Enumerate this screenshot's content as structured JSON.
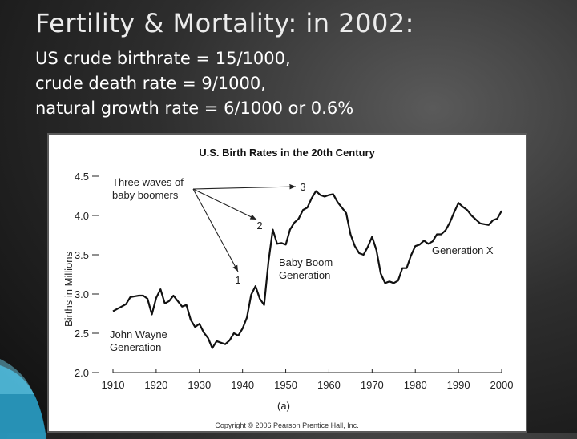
{
  "slide": {
    "title": "Fertility & Mortality: in 2002:",
    "lines": [
      "US crude birthrate = 15/1000,",
      "crude death rate = 9/1000,",
      "natural growth rate = 6/1000 or 0.6%"
    ],
    "accent_color": "#2aa0c8"
  },
  "chart_data": {
    "type": "line",
    "title": "U.S. Birth Rates in the 20th Century",
    "xlabel": "",
    "ylabel": "Births in Millions",
    "xlim": [
      1910,
      2000
    ],
    "ylim": [
      2.0,
      4.5
    ],
    "x_ticks": [
      1910,
      1920,
      1930,
      1940,
      1950,
      1960,
      1970,
      1980,
      1990,
      2000
    ],
    "y_ticks": [
      2.0,
      2.5,
      3.0,
      3.5,
      4.0,
      4.5
    ],
    "y_tick_labels": [
      "2.0",
      "2.5",
      "3.0",
      "3.5",
      "4.0",
      "4.5"
    ],
    "grid": false,
    "line_color": "#111111",
    "series": [
      {
        "x": [
          1910,
          1911,
          1912,
          1913,
          1914,
          1915,
          1916,
          1917,
          1918,
          1919,
          1920,
          1921,
          1922,
          1923,
          1924,
          1925,
          1926,
          1927,
          1928,
          1929,
          1930,
          1931,
          1932,
          1933,
          1934,
          1935,
          1936,
          1937,
          1938,
          1939,
          1940,
          1941,
          1942,
          1943,
          1944,
          1945,
          1946,
          1947,
          1948,
          1949,
          1950,
          1951,
          1952,
          1953,
          1954,
          1955,
          1956,
          1957,
          1958,
          1959,
          1960,
          1961,
          1962,
          1963,
          1964,
          1965,
          1966,
          1967,
          1968,
          1969,
          1970,
          1971,
          1972,
          1973,
          1974,
          1975,
          1976,
          1977,
          1978,
          1979,
          1980,
          1981,
          1982,
          1983,
          1984,
          1985,
          1986,
          1987,
          1988,
          1989,
          1990,
          1991,
          1992,
          1993,
          1994,
          1995,
          1996,
          1997,
          1998,
          1999,
          2000
        ],
        "values": [
          2.78,
          2.81,
          2.84,
          2.87,
          2.96,
          2.97,
          2.98,
          2.98,
          2.94,
          2.74,
          2.95,
          3.06,
          2.88,
          2.91,
          2.98,
          2.91,
          2.84,
          2.86,
          2.67,
          2.58,
          2.62,
          2.51,
          2.44,
          2.31,
          2.4,
          2.38,
          2.36,
          2.41,
          2.5,
          2.47,
          2.56,
          2.7,
          2.99,
          3.1,
          2.94,
          2.86,
          3.41,
          3.82,
          3.64,
          3.65,
          3.63,
          3.82,
          3.91,
          3.96,
          4.07,
          4.1,
          4.22,
          4.31,
          4.26,
          4.24,
          4.26,
          4.27,
          4.17,
          4.1,
          4.03,
          3.76,
          3.61,
          3.52,
          3.5,
          3.6,
          3.73,
          3.56,
          3.26,
          3.14,
          3.16,
          3.14,
          3.17,
          3.33,
          3.33,
          3.49,
          3.61,
          3.63,
          3.68,
          3.64,
          3.67,
          3.76,
          3.76,
          3.81,
          3.91,
          4.04,
          4.16,
          4.11,
          4.07,
          4.0,
          3.95,
          3.9,
          3.89,
          3.88,
          3.94,
          3.96,
          4.06
        ]
      }
    ],
    "annotations": [
      {
        "lines": [
          "Three waves of",
          "baby boomers"
        ]
      },
      {
        "lines": [
          "1"
        ]
      },
      {
        "lines": [
          "2"
        ]
      },
      {
        "lines": [
          "3"
        ]
      },
      {
        "lines": [
          "Baby Boom",
          "Generation"
        ]
      },
      {
        "lines": [
          "John Wayne",
          "Generation"
        ]
      },
      {
        "lines": [
          "Generation X"
        ]
      }
    ],
    "figure_label": "(a)",
    "copyright": "Copyright © 2006 Pearson Prentice Hall, Inc."
  }
}
